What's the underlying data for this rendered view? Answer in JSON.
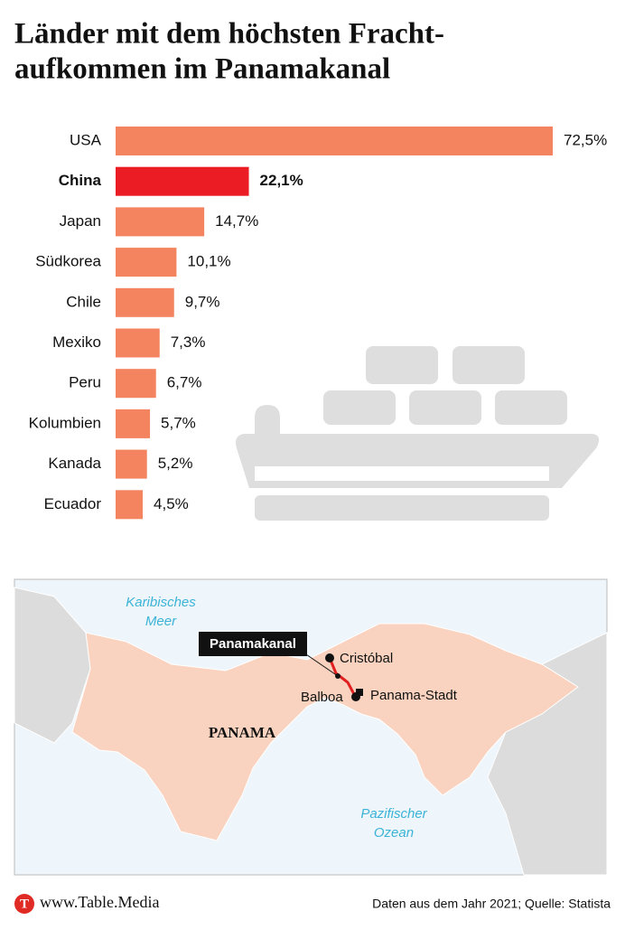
{
  "chart_data": {
    "type": "bar",
    "orientation": "horizontal",
    "title_lines": [
      "Länder mit dem höchsten Fracht-",
      "aufkommen im Panamakanal"
    ],
    "categories": [
      "USA",
      "China",
      "Japan",
      "Südkorea",
      "Chile",
      "Mexiko",
      "Peru",
      "Kolumbien",
      "Kanada",
      "Ecuador"
    ],
    "values": [
      72.5,
      22.1,
      14.7,
      10.1,
      9.7,
      7.3,
      6.7,
      5.7,
      5.2,
      4.5
    ],
    "value_labels": [
      "72,5%",
      "22,1%",
      "14,7%",
      "10,1%",
      "9,7%",
      "7,3%",
      "6,7%",
      "5,7%",
      "5,2%",
      "4,5%"
    ],
    "colors": [
      "#f4845f",
      "#ec1c24",
      "#f4845f",
      "#f4845f",
      "#f4845f",
      "#f4845f",
      "#f4845f",
      "#f4845f",
      "#f4845f",
      "#f4845f"
    ],
    "highlight_color": "#ec1c24"
  },
  "map": {
    "sea_north": [
      "Karibisches",
      "Meer"
    ],
    "sea_south": [
      "Pazifischer",
      "Ozean"
    ],
    "country": "PANAMA",
    "canal": "Panamakanal",
    "cities": [
      "Cristóbal",
      "Balboa",
      "Panama-Stadt"
    ]
  },
  "footer": {
    "logo": "T",
    "site": "www.Table.Media",
    "source": "Daten aus dem Jahr 2021; Quelle: Statista"
  }
}
